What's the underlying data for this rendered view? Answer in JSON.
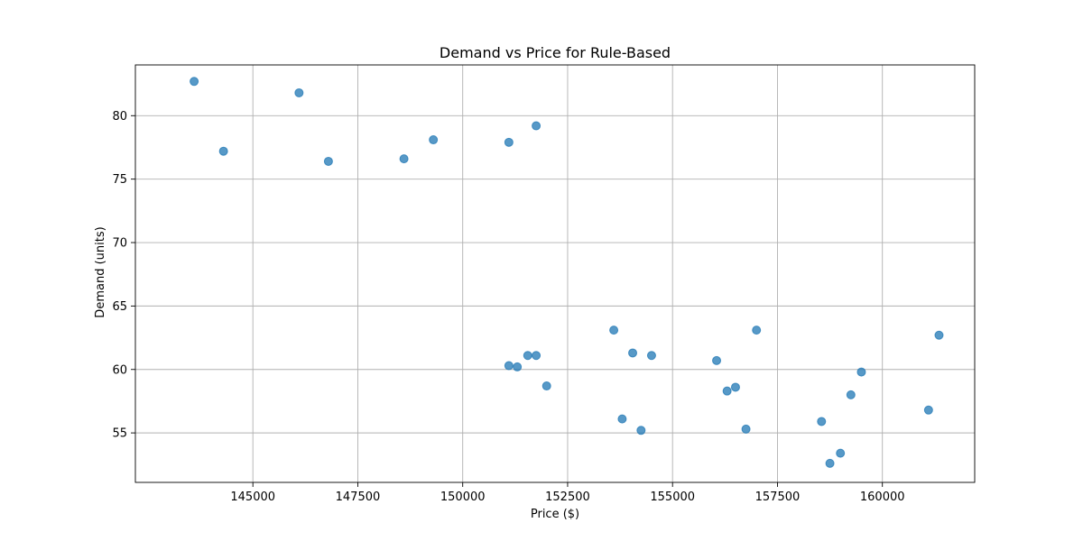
{
  "chart_data": {
    "type": "scatter",
    "title": "Demand vs Price for Rule-Based",
    "xlabel": "Price ($)",
    "ylabel": "Demand (units)",
    "xlim": [
      142200,
      162200
    ],
    "ylim": [
      51.1,
      84.0
    ],
    "xticks": [
      145000,
      147500,
      150000,
      152500,
      155000,
      157500,
      160000
    ],
    "xtick_labels": [
      "145000",
      "147500",
      "150000",
      "152500",
      "155000",
      "157500",
      "160000"
    ],
    "yticks": [
      55,
      60,
      65,
      70,
      75,
      80
    ],
    "ytick_labels": [
      "55",
      "60",
      "65",
      "70",
      "75",
      "80"
    ],
    "grid": true,
    "legend": "none",
    "marker_color": "#1f77b4",
    "marker_alpha": 0.75,
    "points": [
      {
        "x": 143600,
        "y": 82.7
      },
      {
        "x": 144300,
        "y": 77.2
      },
      {
        "x": 146100,
        "y": 81.8
      },
      {
        "x": 146800,
        "y": 76.4
      },
      {
        "x": 148600,
        "y": 76.6
      },
      {
        "x": 149300,
        "y": 78.1
      },
      {
        "x": 151100,
        "y": 77.9
      },
      {
        "x": 151750,
        "y": 79.2
      },
      {
        "x": 151100,
        "y": 60.3
      },
      {
        "x": 151300,
        "y": 60.2
      },
      {
        "x": 151550,
        "y": 61.1
      },
      {
        "x": 151750,
        "y": 61.1
      },
      {
        "x": 152000,
        "y": 58.7
      },
      {
        "x": 153600,
        "y": 63.1
      },
      {
        "x": 153800,
        "y": 56.1
      },
      {
        "x": 154050,
        "y": 61.3
      },
      {
        "x": 154250,
        "y": 55.2
      },
      {
        "x": 154500,
        "y": 61.1
      },
      {
        "x": 156050,
        "y": 60.7
      },
      {
        "x": 156300,
        "y": 58.3
      },
      {
        "x": 156500,
        "y": 58.6
      },
      {
        "x": 156750,
        "y": 55.3
      },
      {
        "x": 157000,
        "y": 63.1
      },
      {
        "x": 158550,
        "y": 55.9
      },
      {
        "x": 158750,
        "y": 52.6
      },
      {
        "x": 159000,
        "y": 53.4
      },
      {
        "x": 159250,
        "y": 58.0
      },
      {
        "x": 159500,
        "y": 59.8
      },
      {
        "x": 161100,
        "y": 56.8
      },
      {
        "x": 161350,
        "y": 62.7
      }
    ]
  }
}
